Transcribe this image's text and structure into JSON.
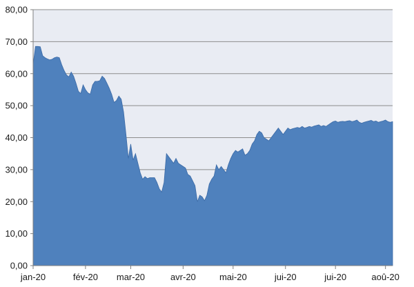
{
  "chart_data": {
    "type": "area",
    "title": "",
    "xlabel": "",
    "ylabel": "",
    "ylim": [
      0,
      80
    ],
    "y_ticks": [
      0,
      10,
      20,
      30,
      40,
      50,
      60,
      70,
      80
    ],
    "y_tick_labels": [
      "0,00",
      "10,00",
      "20,00",
      "30,00",
      "40,00",
      "50,00",
      "60,00",
      "70,00",
      "80,00"
    ],
    "x_tick_labels": [
      "jan-20",
      "fév-20",
      "mar-20",
      "avr-20",
      "mai-20",
      "jui-20",
      "jui-20",
      "aoû-20"
    ],
    "x_tick_index": [
      0,
      22,
      41,
      63,
      84,
      106,
      127,
      148
    ],
    "grid": true,
    "legend": "none",
    "colors": {
      "fill": "#4f81bd",
      "line": "#3b6aa6",
      "plot_background": "#e9ecf3",
      "gridline": "#8c8c8c",
      "axis": "#7f7f7f"
    },
    "series": [
      {
        "values": [
          63.0,
          68.5,
          68.5,
          68.4,
          65.6,
          65.0,
          64.6,
          64.3,
          64.5,
          65.0,
          65.2,
          65.0,
          62.8,
          61.0,
          59.6,
          59.0,
          60.5,
          59.2,
          57.0,
          54.5,
          53.8,
          56.5,
          55.0,
          54.0,
          53.6,
          56.5,
          57.6,
          57.6,
          57.8,
          59.2,
          58.5,
          57.0,
          55.4,
          53.5,
          51.0,
          51.6,
          53.0,
          52.0,
          48.0,
          41.0,
          33.5,
          38.0,
          33.0,
          35.0,
          32.0,
          29.0,
          27.0,
          27.8,
          27.2,
          27.5,
          27.5,
          27.5,
          26.0,
          24.0,
          23.0,
          26.0,
          35.0,
          34.0,
          33.0,
          32.0,
          33.5,
          32.0,
          31.5,
          31.0,
          30.5,
          28.5,
          28.0,
          26.5,
          25.0,
          20.0,
          22.0,
          21.5,
          20.3,
          22.0,
          25.5,
          27.0,
          28.0,
          31.5,
          30.0,
          31.0,
          30.0,
          29.0,
          31.5,
          33.5,
          35.0,
          36.0,
          35.5,
          36.0,
          36.5,
          34.5,
          35.0,
          36.0,
          38.0,
          39.0,
          41.0,
          42.0,
          41.5,
          40.0,
          39.5,
          39.0,
          40.0,
          41.0,
          42.0,
          43.0,
          42.0,
          41.0,
          42.0,
          43.0,
          42.5,
          42.8,
          43.0,
          43.2,
          43.0,
          43.5,
          43.0,
          43.2,
          43.5,
          43.3,
          43.6,
          43.8,
          44.0,
          43.5,
          43.8,
          43.5,
          44.0,
          44.5,
          45.0,
          45.2,
          44.8,
          45.0,
          45.1,
          45.0,
          45.2,
          45.3,
          45.0,
          45.2,
          45.5,
          44.8,
          44.5,
          44.8,
          45.0,
          45.2,
          45.4,
          45.0,
          45.2,
          44.8,
          45.0,
          45.2,
          45.5,
          45.0,
          44.8,
          45.0
        ]
      }
    ]
  }
}
